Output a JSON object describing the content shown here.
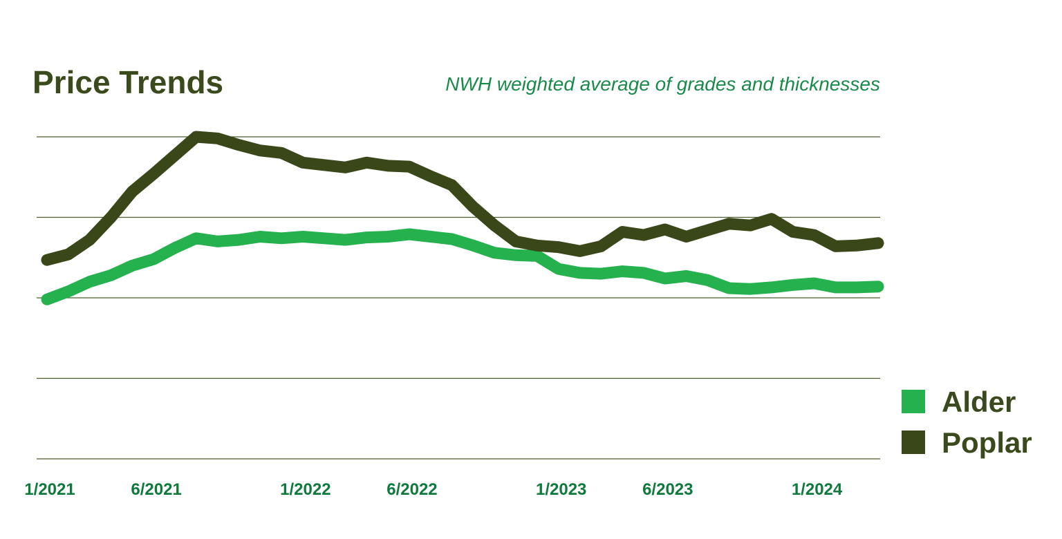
{
  "chart_data": {
    "type": "line",
    "title": "Price Trends",
    "subtitle": "NWH weighted average of grades and thicknesses",
    "xlabel": "",
    "ylabel": "",
    "x_tick_labels": [
      "1/2021",
      "6/2021",
      "1/2022",
      "6/2022",
      "1/2023",
      "6/2023",
      "1/2024"
    ],
    "x_tick_month_index": [
      0,
      5,
      12,
      17,
      24,
      29,
      36
    ],
    "ylim": [
      0,
      4
    ],
    "y_gridlines": [
      0,
      1,
      2,
      3,
      4
    ],
    "grid": true,
    "legend_position": "right",
    "series": [
      {
        "name": "Alder",
        "color": "#26b14f",
        "values": [
          1.98,
          2.08,
          2.2,
          2.28,
          2.4,
          2.48,
          2.62,
          2.74,
          2.7,
          2.72,
          2.76,
          2.74,
          2.76,
          2.74,
          2.72,
          2.75,
          2.76,
          2.79,
          2.76,
          2.73,
          2.65,
          2.56,
          2.53,
          2.52,
          2.36,
          2.31,
          2.3,
          2.33,
          2.31,
          2.24,
          2.27,
          2.22,
          2.12,
          2.11,
          2.13,
          2.16,
          2.18,
          2.13,
          2.13,
          2.14
        ]
      },
      {
        "name": "Poplar",
        "color": "#3a4719",
        "values": [
          2.47,
          2.54,
          2.72,
          3.0,
          3.32,
          3.54,
          3.77,
          4.0,
          3.98,
          3.9,
          3.83,
          3.8,
          3.68,
          3.65,
          3.62,
          3.68,
          3.64,
          3.63,
          3.51,
          3.4,
          3.13,
          2.9,
          2.7,
          2.65,
          2.63,
          2.58,
          2.64,
          2.82,
          2.78,
          2.85,
          2.76,
          2.84,
          2.92,
          2.9,
          2.98,
          2.82,
          2.78,
          2.64,
          2.65,
          2.68
        ]
      }
    ]
  }
}
